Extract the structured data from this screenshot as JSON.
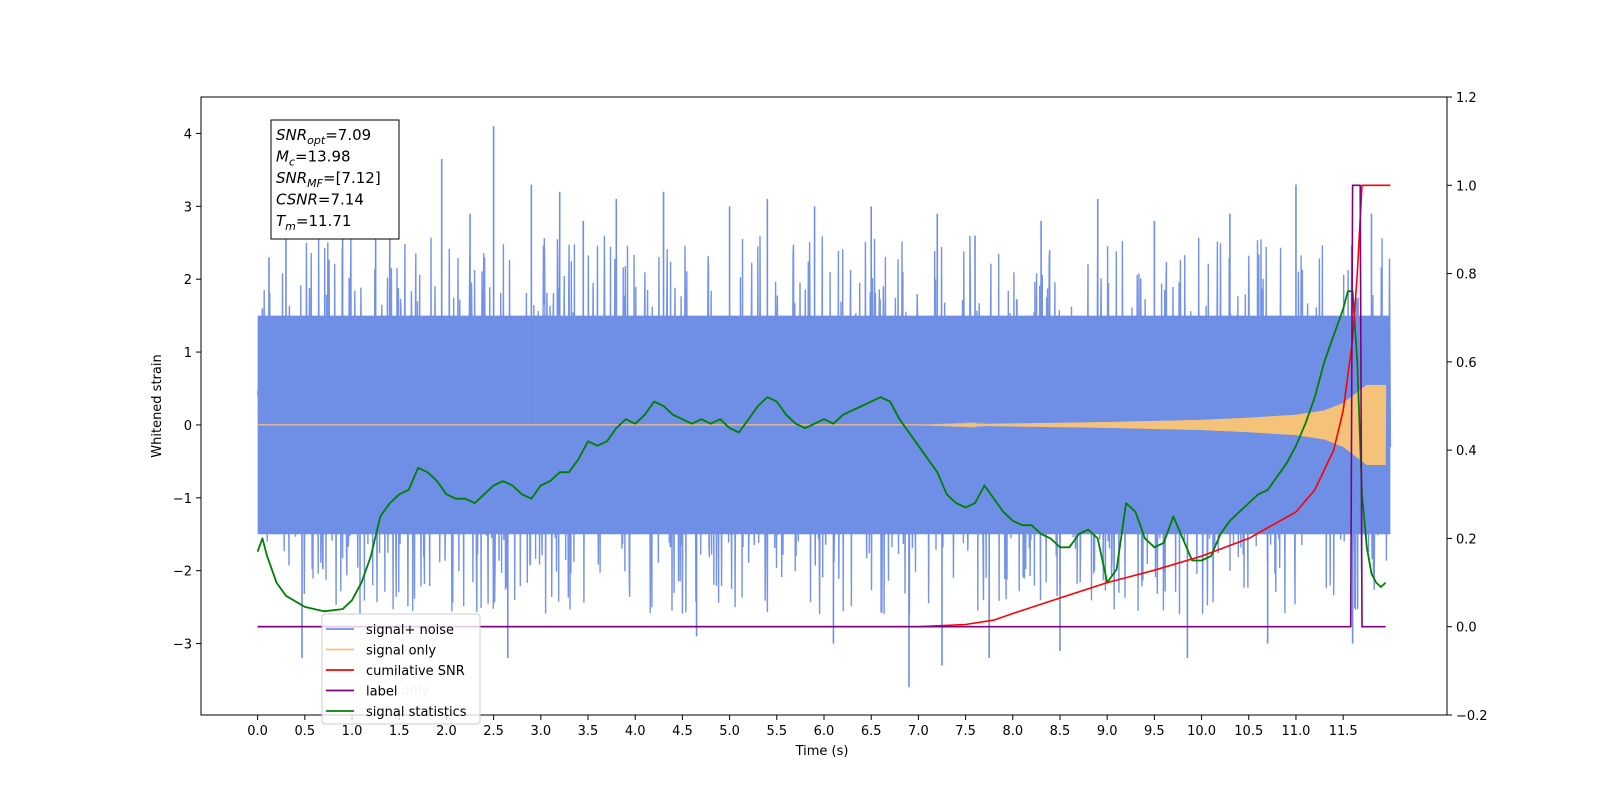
{
  "chart_data": {
    "type": "line",
    "xlabel": "Time (s)",
    "ylabel": "Whitened strain",
    "y2label": "",
    "xlim": [
      -0.6,
      12.6
    ],
    "ylim": [
      -3.98,
      4.5
    ],
    "y2lim": [
      -0.2,
      1.2
    ],
    "x_ticks": [
      0.0,
      0.5,
      1.0,
      1.5,
      2.0,
      2.5,
      3.0,
      3.5,
      4.0,
      4.5,
      5.0,
      5.5,
      6.0,
      6.5,
      7.0,
      7.5,
      8.0,
      8.5,
      9.0,
      9.5,
      10.0,
      10.5,
      11.0,
      11.5
    ],
    "x_tick_labels": [
      "0.0",
      "0.5",
      "1.0",
      "1.5",
      "2.0",
      "2.5",
      "3.0",
      "3.5",
      "4.0",
      "4.5",
      "5.0",
      "5.5",
      "6.0",
      "6.5",
      "7.0",
      "7.5",
      "8.0",
      "8.5",
      "9.0",
      "9.5",
      "10.0",
      "10.5",
      "11.0",
      "11.5"
    ],
    "y_ticks": [
      -3,
      -2,
      -1,
      0,
      1,
      2,
      3,
      4
    ],
    "y_tick_labels": [
      "−3",
      "−2",
      "−1",
      "0",
      "1",
      "2",
      "3",
      "4"
    ],
    "y2_ticks": [
      -0.2,
      0.0,
      0.2,
      0.4,
      0.6,
      0.8,
      1.0,
      1.2
    ],
    "y2_tick_labels": [
      "−0.2",
      "0.0",
      "0.2",
      "0.4",
      "0.6",
      "0.8",
      "1.0",
      "1.2"
    ],
    "grid": false,
    "legend_position": "bottom-left",
    "series": [
      {
        "name": "signal+ noise",
        "axis": "left",
        "color": "#6f8ee6"
      },
      {
        "name": "signal only",
        "axis": "left",
        "color": "#f5c27a"
      },
      {
        "name": "cumilative SNR",
        "axis": "right",
        "color": "#ff0000",
        "x": [
          0.0,
          6.5,
          7.0,
          7.5,
          7.8,
          8.0,
          8.5,
          9.0,
          9.5,
          10.0,
          10.5,
          11.0,
          11.2,
          11.4,
          11.5,
          11.6,
          11.65,
          11.7,
          11.75,
          12.0
        ],
        "y": [
          0.0,
          0.0,
          0.0,
          0.005,
          0.015,
          0.03,
          0.065,
          0.1,
          0.128,
          0.16,
          0.2,
          0.26,
          0.31,
          0.4,
          0.49,
          0.65,
          0.8,
          1.0,
          1.0,
          1.0
        ]
      },
      {
        "name": "label",
        "axis": "right",
        "color": "#800080",
        "x": [
          0.0,
          11.58,
          11.6,
          11.68,
          11.7,
          11.95
        ],
        "y": [
          0.0,
          0.0,
          1.0,
          1.0,
          0.0,
          0.0
        ]
      },
      {
        "name": "signal statistics",
        "axis": "right",
        "color": "#008000",
        "x": [
          0.0,
          0.05,
          0.1,
          0.2,
          0.3,
          0.5,
          0.7,
          0.9,
          1.0,
          1.1,
          1.2,
          1.3,
          1.4,
          1.5,
          1.6,
          1.7,
          1.8,
          1.9,
          2.0,
          2.1,
          2.2,
          2.3,
          2.4,
          2.5,
          2.6,
          2.7,
          2.8,
          2.9,
          3.0,
          3.1,
          3.2,
          3.3,
          3.4,
          3.5,
          3.6,
          3.7,
          3.8,
          3.9,
          4.0,
          4.1,
          4.2,
          4.3,
          4.4,
          4.5,
          4.6,
          4.7,
          4.8,
          4.9,
          5.0,
          5.1,
          5.2,
          5.3,
          5.4,
          5.5,
          5.6,
          5.7,
          5.8,
          5.9,
          6.0,
          6.1,
          6.2,
          6.3,
          6.4,
          6.5,
          6.6,
          6.7,
          6.8,
          6.9,
          7.0,
          7.1,
          7.2,
          7.3,
          7.4,
          7.5,
          7.6,
          7.7,
          7.8,
          7.9,
          8.0,
          8.1,
          8.2,
          8.3,
          8.4,
          8.5,
          8.6,
          8.7,
          8.8,
          8.9,
          9.0,
          9.1,
          9.2,
          9.3,
          9.4,
          9.5,
          9.6,
          9.7,
          9.8,
          9.9,
          10.0,
          10.1,
          10.2,
          10.3,
          10.4,
          10.5,
          10.6,
          10.7,
          10.8,
          10.9,
          11.0,
          11.1,
          11.2,
          11.3,
          11.4,
          11.5,
          11.55,
          11.6,
          11.65,
          11.7,
          11.75,
          11.8,
          11.85,
          11.9,
          11.95
        ],
        "y": [
          0.17,
          0.2,
          0.16,
          0.1,
          0.07,
          0.045,
          0.035,
          0.04,
          0.06,
          0.1,
          0.16,
          0.25,
          0.28,
          0.3,
          0.31,
          0.36,
          0.35,
          0.33,
          0.3,
          0.29,
          0.29,
          0.28,
          0.3,
          0.32,
          0.33,
          0.32,
          0.3,
          0.29,
          0.32,
          0.33,
          0.35,
          0.35,
          0.38,
          0.42,
          0.41,
          0.42,
          0.45,
          0.47,
          0.46,
          0.48,
          0.51,
          0.5,
          0.48,
          0.47,
          0.46,
          0.47,
          0.46,
          0.47,
          0.45,
          0.44,
          0.47,
          0.5,
          0.52,
          0.51,
          0.48,
          0.46,
          0.45,
          0.46,
          0.47,
          0.46,
          0.48,
          0.49,
          0.5,
          0.51,
          0.52,
          0.51,
          0.47,
          0.44,
          0.41,
          0.38,
          0.35,
          0.3,
          0.28,
          0.27,
          0.28,
          0.32,
          0.29,
          0.26,
          0.24,
          0.23,
          0.23,
          0.21,
          0.2,
          0.18,
          0.18,
          0.21,
          0.22,
          0.2,
          0.1,
          0.13,
          0.28,
          0.26,
          0.2,
          0.18,
          0.19,
          0.25,
          0.2,
          0.15,
          0.15,
          0.16,
          0.21,
          0.24,
          0.26,
          0.28,
          0.3,
          0.31,
          0.34,
          0.37,
          0.41,
          0.46,
          0.52,
          0.6,
          0.66,
          0.72,
          0.76,
          0.76,
          0.6,
          0.3,
          0.18,
          0.12,
          0.1,
          0.09,
          0.1
        ]
      }
    ],
    "noise_envelope": {
      "x": [
        0.0,
        2.0,
        4.0,
        6.0,
        8.0,
        10.0,
        12.0
      ],
      "upper": [
        1.5,
        1.5,
        1.5,
        1.5,
        1.5,
        1.5,
        1.5
      ],
      "lower": [
        -1.5,
        -1.5,
        -1.5,
        -1.5,
        -1.5,
        -1.5,
        -1.5
      ]
    },
    "noise_spikes": [
      {
        "x": 0.05,
        "y": 1.6
      },
      {
        "x": 0.12,
        "y": 2.3
      },
      {
        "x": 0.3,
        "y": 2.6
      },
      {
        "x": 0.47,
        "y": -3.2
      },
      {
        "x": 0.9,
        "y": 3.3
      },
      {
        "x": 1.25,
        "y": 3.6
      },
      {
        "x": 1.4,
        "y": 2.9
      },
      {
        "x": 1.95,
        "y": 3.65
      },
      {
        "x": 2.25,
        "y": 2.9
      },
      {
        "x": 2.5,
        "y": 4.1
      },
      {
        "x": 2.65,
        "y": -3.2
      },
      {
        "x": 2.9,
        "y": 3.3
      },
      {
        "x": 3.2,
        "y": 3.2
      },
      {
        "x": 3.45,
        "y": 2.8
      },
      {
        "x": 3.8,
        "y": 3.1
      },
      {
        "x": 4.3,
        "y": 3.2
      },
      {
        "x": 4.65,
        "y": -2.9
      },
      {
        "x": 5.0,
        "y": 3.0
      },
      {
        "x": 5.4,
        "y": 3.1
      },
      {
        "x": 5.9,
        "y": 3.0
      },
      {
        "x": 6.1,
        "y": -3.0
      },
      {
        "x": 6.5,
        "y": 3.0
      },
      {
        "x": 6.9,
        "y": -3.6
      },
      {
        "x": 7.2,
        "y": 2.9
      },
      {
        "x": 7.25,
        "y": -3.3
      },
      {
        "x": 7.6,
        "y": 2.6
      },
      {
        "x": 7.75,
        "y": -3.2
      },
      {
        "x": 8.3,
        "y": 2.8
      },
      {
        "x": 8.5,
        "y": -3.1
      },
      {
        "x": 8.9,
        "y": 3.1
      },
      {
        "x": 9.5,
        "y": 2.8
      },
      {
        "x": 9.85,
        "y": -3.2
      },
      {
        "x": 10.3,
        "y": 2.9
      },
      {
        "x": 10.7,
        "y": -3.0
      },
      {
        "x": 11.0,
        "y": 3.3
      },
      {
        "x": 11.6,
        "y": -3.0
      },
      {
        "x": 11.8,
        "y": 2.9
      }
    ],
    "signal_envelope": {
      "x": [
        0.0,
        7.0,
        8.0,
        9.0,
        10.0,
        10.5,
        11.0,
        11.3,
        11.5,
        11.65,
        11.75,
        12.0
      ],
      "amp": [
        0.0,
        0.0,
        0.02,
        0.04,
        0.07,
        0.1,
        0.14,
        0.2,
        0.3,
        0.45,
        0.55,
        0.55
      ]
    },
    "annotation": {
      "lines": [
        {
          "label": "SNR",
          "sub": "opt",
          "value": "=7.09"
        },
        {
          "label": "M",
          "sub": "c",
          "value": "=13.98"
        },
        {
          "label": "SNR",
          "sub": "MF",
          "value": "=[7.12]"
        },
        {
          "label": "CSNR",
          "sub": "",
          "value": "=7.14"
        },
        {
          "label": "T",
          "sub": "m",
          "value": "=11.71"
        }
      ]
    },
    "legend_entries": [
      "signal+ noise",
      "signal only",
      "cumilative SNR",
      "label",
      "signal statistics"
    ],
    "legend_ghost_texts": [
      {
        "text": "label only",
        "index": 3
      },
      {
        "text": "signal statistics",
        "index": 4
      }
    ]
  }
}
